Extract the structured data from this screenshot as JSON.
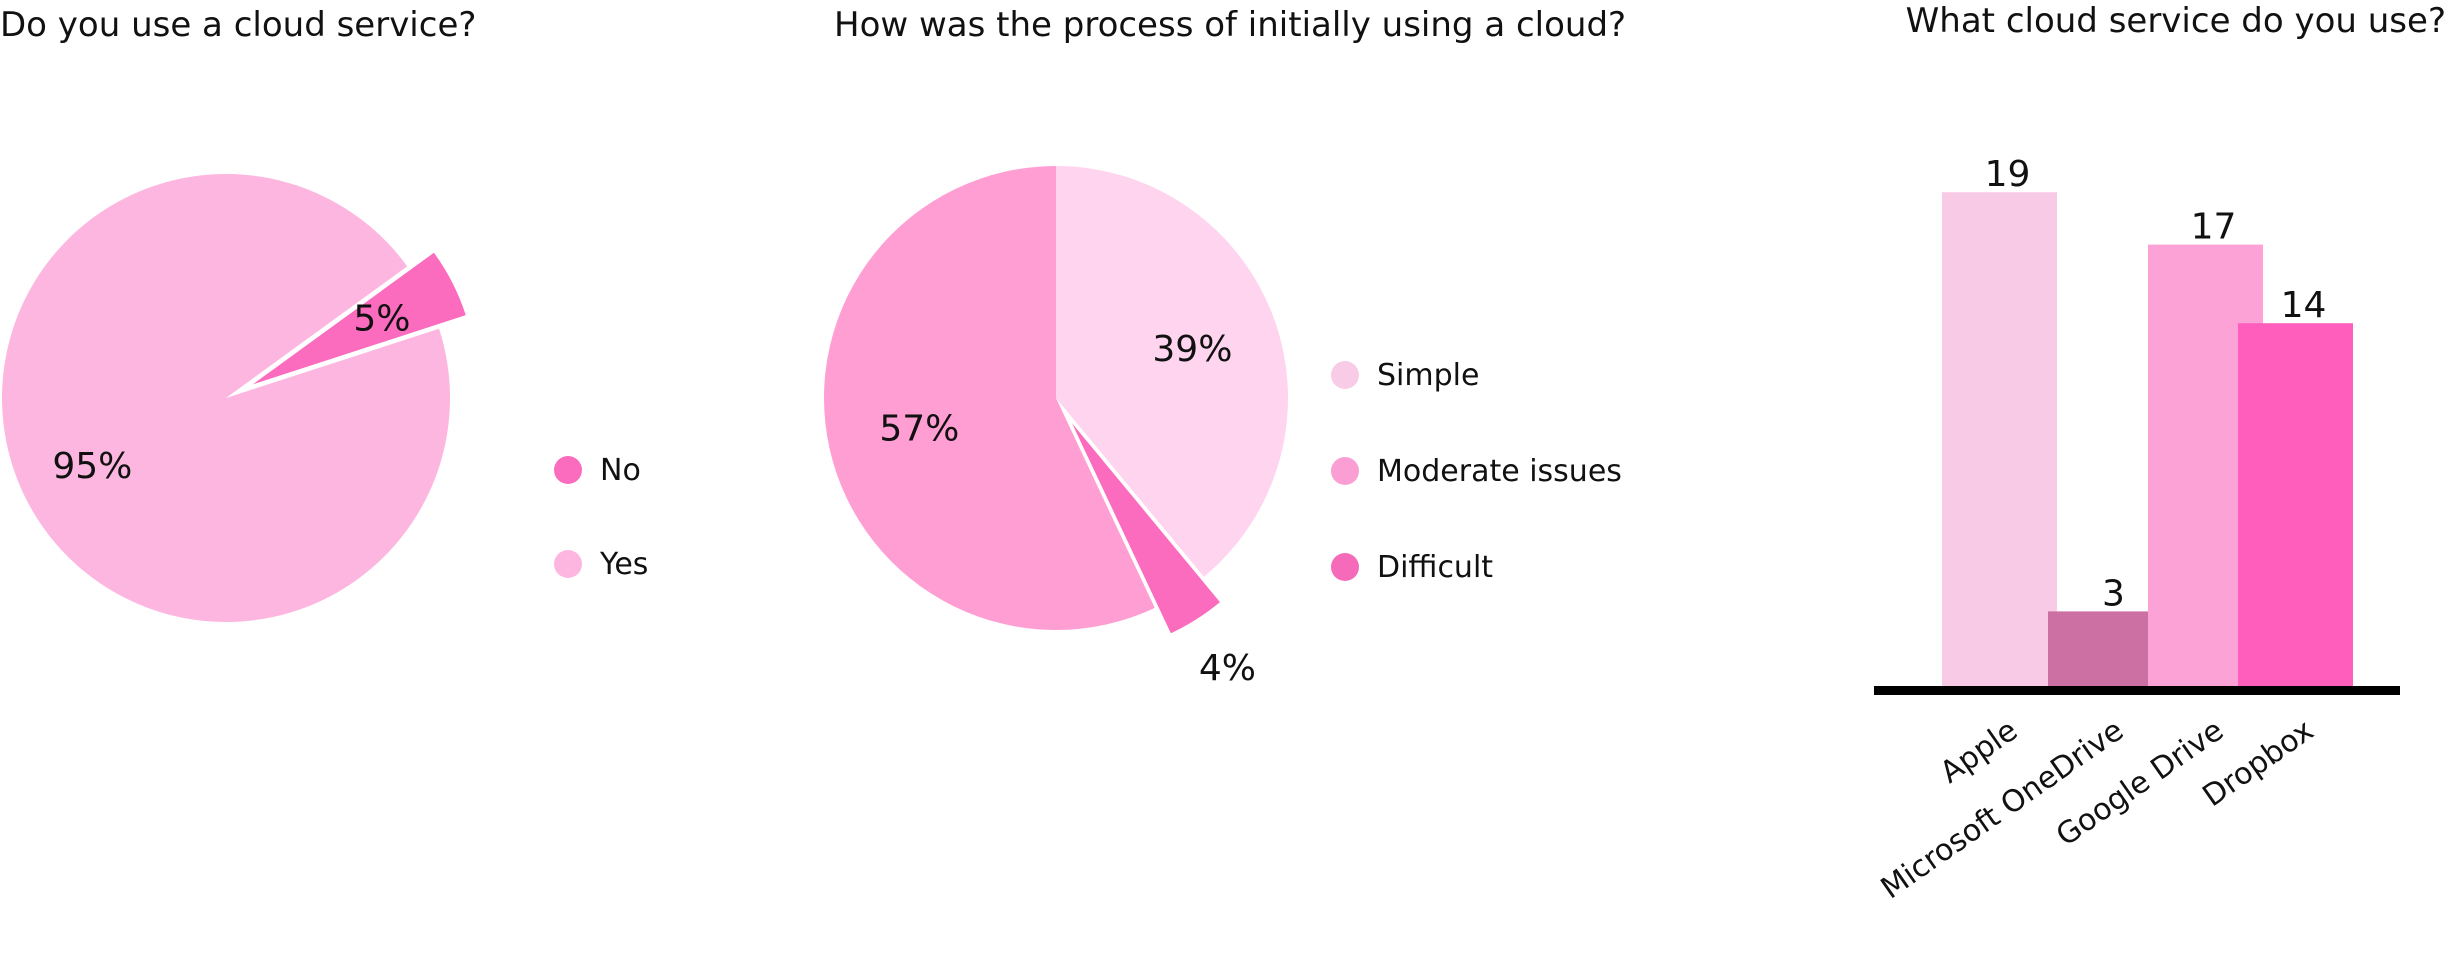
{
  "chart_data": [
    {
      "type": "pie",
      "title": "Do you use a cloud service?",
      "slices": [
        {
          "label": "Yes",
          "value": 95,
          "value_label": "95%",
          "color": "#FDB6DF"
        },
        {
          "label": "No",
          "value": 5,
          "value_label": "5%",
          "color": "#FB6BBE"
        }
      ],
      "legend": [
        "No",
        "Yes"
      ],
      "legend_colors": [
        "#FB6BBE",
        "#FDB6DF"
      ],
      "legend_position": "right"
    },
    {
      "type": "pie",
      "title": "How was the process of initially using a cloud?",
      "slices": [
        {
          "label": "Simple",
          "value": 39,
          "value_label": "39%",
          "color": "#FFD4EE"
        },
        {
          "label": "Difficult",
          "value": 4,
          "value_label": "4%",
          "color": "#FB6BBE"
        },
        {
          "label": "Moderate issues",
          "value": 57,
          "value_label": "57%",
          "color": "#FF9ED3"
        }
      ],
      "legend": [
        "Simple",
        "Moderate issues",
        "Difficult"
      ],
      "legend_colors": [
        "#F8CCE6",
        "#FA9ED3",
        "#F56BBA"
      ],
      "legend_position": "right"
    },
    {
      "type": "bar",
      "title": "What cloud service do you use?",
      "categories": [
        "Apple",
        "Microsoft OneDrive",
        "Google Drive",
        "Dropbox"
      ],
      "values": [
        19,
        3,
        17,
        14
      ],
      "value_labels": [
        "19",
        "3",
        "17",
        "14"
      ],
      "colors": [
        "#F8CAE5",
        "#CC6FA2",
        "#FCA2D6",
        "#FF5EBD"
      ],
      "ylim": [
        0,
        20
      ],
      "grid": false
    }
  ]
}
